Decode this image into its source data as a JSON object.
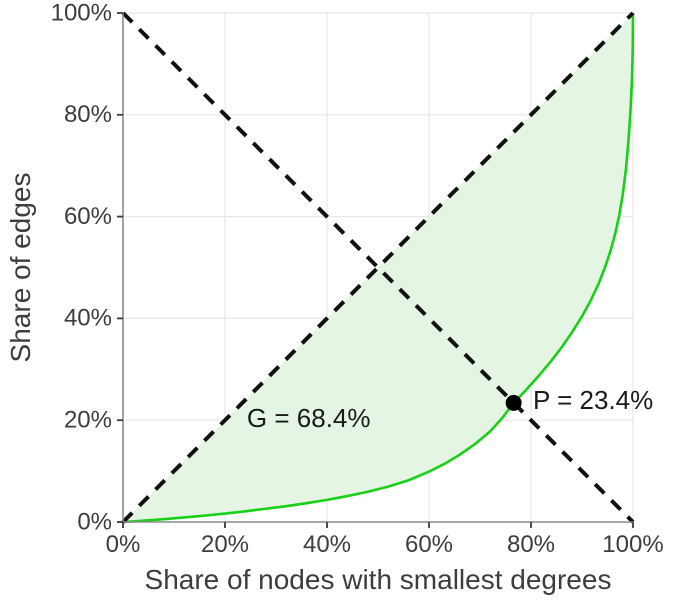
{
  "figure": {
    "background": "#ffffff"
  },
  "chart_data": {
    "type": "line",
    "title": "",
    "xlabel": "Share of nodes with smallest degrees",
    "ylabel": "Share of edges",
    "xlim": [
      0,
      100
    ],
    "ylim": [
      0,
      100
    ],
    "grid": true,
    "legend": "none",
    "x_ticks": [
      {
        "value": 0,
        "label": "0%"
      },
      {
        "value": 20,
        "label": "20%"
      },
      {
        "value": 40,
        "label": "40%"
      },
      {
        "value": 60,
        "label": "60%"
      },
      {
        "value": 80,
        "label": "80%"
      },
      {
        "value": 100,
        "label": "100%"
      }
    ],
    "y_ticks": [
      {
        "value": 0,
        "label": "0%"
      },
      {
        "value": 20,
        "label": "20%"
      },
      {
        "value": 40,
        "label": "40%"
      },
      {
        "value": 60,
        "label": "60%"
      },
      {
        "value": 80,
        "label": "80%"
      },
      {
        "value": 100,
        "label": "100%"
      }
    ],
    "series": [
      {
        "name": "lorenz-curve",
        "style": "solid",
        "color": "#17d117",
        "width": 2.6,
        "x": [
          0,
          4,
          8,
          12,
          16,
          20,
          24,
          28,
          32,
          36,
          40,
          44,
          48,
          52,
          56,
          60,
          63,
          66,
          69,
          72,
          74.5,
          76.6,
          79,
          81.5,
          84,
          86,
          88,
          90,
          91.7,
          93.2,
          94.5,
          95.6,
          96.5,
          97.3,
          98,
          98.6,
          99.1,
          99.5,
          99.8,
          99.95,
          100
        ],
        "y": [
          0,
          0.25,
          0.55,
          0.9,
          1.25,
          1.65,
          2.1,
          2.6,
          3.1,
          3.7,
          4.35,
          5.1,
          5.95,
          6.95,
          8.2,
          9.9,
          11.4,
          13.2,
          15.3,
          17.8,
          20.6,
          23.4,
          25.9,
          28.7,
          31.7,
          34.3,
          37.2,
          40.4,
          43.5,
          46.7,
          50.0,
          53.3,
          56.6,
          60.2,
          64.4,
          69.2,
          74.7,
          80.7,
          87.0,
          93.0,
          100
        ]
      },
      {
        "name": "equality-diagonal",
        "style": "dashed",
        "color": "#111111",
        "width": 4,
        "x": [
          0,
          100
        ],
        "y": [
          0,
          100
        ]
      },
      {
        "name": "anti-diagonal",
        "style": "dashed",
        "color": "#111111",
        "width": 4,
        "x": [
          0,
          100
        ],
        "y": [
          100,
          0
        ]
      }
    ],
    "fill_between": {
      "upper": "equality-diagonal",
      "lower": "lorenz-curve",
      "color": "#e4f5e4"
    },
    "marker": {
      "name": "pivot-point",
      "x": 76.6,
      "y": 23.4,
      "radius": 8,
      "color": "#000000"
    },
    "annotations": [
      {
        "id": "gini-label",
        "text": "G = 68.4%",
        "x": 24.3,
        "y": 18.7,
        "anchor": "start"
      },
      {
        "id": "pivot-label",
        "text": "P = 23.4%",
        "x": 80.4,
        "y": 22.2,
        "anchor": "start"
      }
    ],
    "axis_style": {
      "axis_color": "#8c8c8c",
      "tick_color": "#3b3b3b",
      "grid_color": "#e7e7e7",
      "tick_label_color": "#3d3d3d",
      "title_color": "#3d3d3d",
      "annotation_color": "#1a1a1a"
    }
  }
}
